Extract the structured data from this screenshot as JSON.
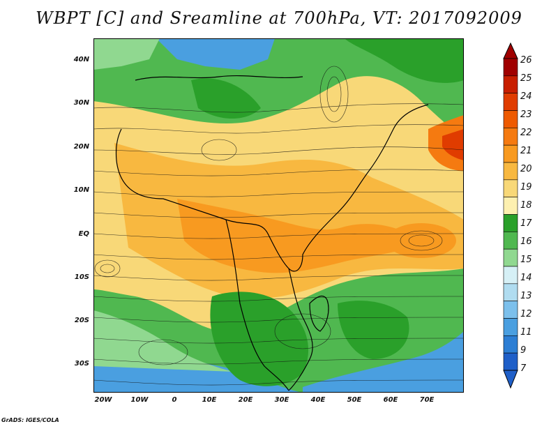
{
  "title": "WBPT [C] and Sreamline at 700hPa, VT: 2017092009",
  "credit": "GrADS: IGES/COLA",
  "lat_ticks": [
    "40N",
    "30N",
    "20N",
    "10N",
    "EQ",
    "10S",
    "20S",
    "30S"
  ],
  "lon_ticks": [
    "20W",
    "10W",
    "0",
    "10E",
    "20E",
    "30E",
    "40E",
    "50E",
    "60E",
    "70E"
  ],
  "colorbar": {
    "labels": [
      "26",
      "25",
      "24",
      "23",
      "22",
      "21",
      "20",
      "19",
      "18",
      "17",
      "16",
      "15",
      "14",
      "13",
      "12",
      "11",
      "9",
      "7"
    ],
    "colors": [
      "#a00000",
      "#c81e00",
      "#e03c00",
      "#ee5a00",
      "#f57a10",
      "#f89a20",
      "#f8b840",
      "#f8d878",
      "#fdf0b0",
      "#2aa02a",
      "#50b850",
      "#90d890",
      "#d6f0f6",
      "#b0dcf0",
      "#7cc0ec",
      "#4a9fe0",
      "#2c7ed4",
      "#1f5fc8"
    ]
  }
}
